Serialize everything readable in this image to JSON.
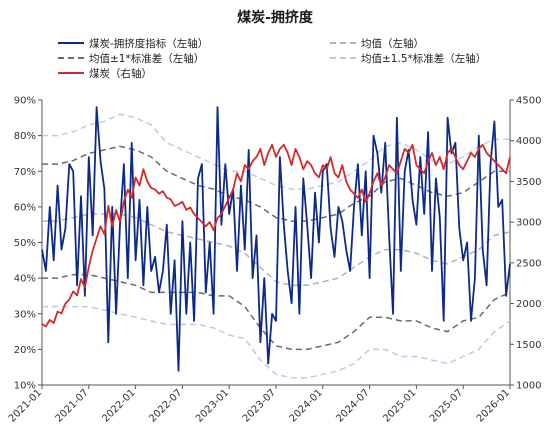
{
  "chart_data": {
    "type": "line",
    "title": "煤炭-拥挤度",
    "legend_position": "top",
    "grid": false,
    "x_labels": [
      "2021-01",
      "2021-07",
      "2022-01",
      "2022-07",
      "2023-01",
      "2023-07",
      "2024-01",
      "2024-07",
      "2025-01",
      "2025-07",
      "2026-01"
    ],
    "x_range": [
      0,
      60
    ],
    "y_left": {
      "range": [
        10,
        90
      ],
      "ticks": [
        "10%",
        "20%",
        "30%",
        "40%",
        "50%",
        "60%",
        "70%",
        "80%",
        "90%"
      ]
    },
    "y_right": {
      "range": [
        1000,
        4500
      ],
      "ticks": [
        "1000",
        "1500",
        "2000",
        "2500",
        "3000",
        "3500",
        "4000",
        "4500"
      ]
    },
    "legend": [
      "煤炭-拥挤度指标（左轴）",
      "均值（左轴）",
      "均值±1*标准差（左轴）",
      "均值±1.5*标准差（左轴）",
      "煤炭（右轴）"
    ],
    "series": [
      {
        "name": "煤炭-拥挤度指标（左轴）",
        "axis": "left",
        "color": "#0d2a8a",
        "dash": "",
        "x": [
          0,
          0.5,
          1,
          1.5,
          2,
          2.5,
          3,
          3.5,
          4,
          4.5,
          5,
          5.5,
          6,
          6.5,
          7,
          7.5,
          8,
          8.5,
          9,
          9.5,
          10,
          10.5,
          11,
          11.5,
          12,
          12.5,
          13,
          13.5,
          14,
          14.5,
          15,
          15.5,
          16,
          16.5,
          17,
          17.5,
          18,
          18.5,
          19,
          19.5,
          20,
          20.5,
          21,
          21.5,
          22,
          22.5,
          23,
          23.5,
          24,
          24.5,
          25,
          25.5,
          26,
          26.5,
          27,
          27.5,
          28,
          28.5,
          29,
          29.5,
          30,
          30.5,
          31,
          31.5,
          32,
          32.5,
          33,
          33.5,
          34,
          34.5,
          35,
          35.5,
          36,
          36.5,
          37,
          37.5,
          38,
          38.5,
          39,
          39.5,
          40,
          40.5,
          41,
          41.5,
          42,
          42.5,
          43,
          43.5,
          44,
          44.5,
          45,
          45.5,
          46,
          46.5,
          47,
          47.5,
          48,
          48.5,
          49,
          49.5,
          50,
          50.5,
          51,
          51.5,
          52,
          52.5,
          53,
          53.5,
          54,
          54.5,
          55,
          55.5,
          56,
          56.5,
          57,
          57.5,
          58,
          58.5,
          59,
          59.5,
          60
        ],
        "y": [
          48,
          42,
          60,
          45,
          66,
          48,
          54,
          72,
          70,
          38,
          63,
          35,
          74,
          52,
          88,
          73,
          65,
          22,
          60,
          30,
          55,
          72,
          40,
          78,
          45,
          62,
          38,
          60,
          42,
          46,
          36,
          42,
          55,
          30,
          45,
          14,
          56,
          30,
          50,
          28,
          68,
          72,
          36,
          50,
          30,
          88,
          55,
          72,
          58,
          65,
          42,
          66,
          48,
          76,
          40,
          52,
          22,
          40,
          16,
          30,
          28,
          74,
          55,
          42,
          33,
          60,
          30,
          68,
          55,
          40,
          64,
          50,
          70,
          72,
          54,
          46,
          60,
          56,
          48,
          42,
          60,
          72,
          52,
          70,
          40,
          80,
          75,
          64,
          78,
          52,
          30,
          85,
          42,
          70,
          76,
          62,
          55,
          74,
          58,
          81,
          42,
          68,
          57,
          28,
          85,
          75,
          78,
          54,
          45,
          50,
          28,
          40,
          80,
          48,
          38,
          72,
          84,
          60,
          62,
          35,
          44
        ]
      },
      {
        "name": "均值（左轴）",
        "axis": "left",
        "color": "#a9b3c2",
        "dash": "6,4",
        "x": [
          0,
          2,
          4,
          6,
          8,
          10,
          12,
          14,
          16,
          18,
          20,
          22,
          24,
          26,
          28,
          30,
          32,
          34,
          36,
          38,
          40,
          42,
          44,
          46,
          48,
          50,
          52,
          54,
          56,
          58,
          60
        ],
        "y": [
          56,
          56,
          57,
          58,
          58,
          58,
          57,
          55,
          53,
          52,
          51,
          50,
          49,
          47,
          43,
          39,
          38,
          38,
          39,
          40,
          43,
          46,
          48,
          48,
          47,
          45,
          44,
          46,
          48,
          52,
          53
        ]
      },
      {
        "name": "均值±1*标准差（左轴）",
        "axis": "left",
        "color": "#6a6a6a",
        "dash": "6,4",
        "x": [
          0,
          2,
          4,
          6,
          8,
          10,
          12,
          14,
          16,
          18,
          20,
          22,
          24,
          26,
          28,
          30,
          32,
          34,
          36,
          38,
          40,
          42,
          44,
          46,
          48,
          50,
          52,
          54,
          56,
          58,
          60
        ],
        "y": [
          72,
          72,
          73,
          75,
          76,
          77,
          76,
          74,
          70,
          68,
          66,
          65,
          63,
          62,
          60,
          57,
          56,
          56,
          57,
          58,
          61,
          63,
          67,
          68,
          66,
          64,
          63,
          64,
          67,
          70,
          70
        ]
      },
      {
        "name": "均值±1*标准差（左轴）",
        "axis": "left",
        "color": "#6a6a6a",
        "dash": "6,4",
        "x": [
          0,
          2,
          4,
          6,
          8,
          10,
          12,
          14,
          16,
          18,
          20,
          22,
          24,
          26,
          28,
          30,
          32,
          34,
          36,
          38,
          40,
          42,
          44,
          46,
          48,
          50,
          52,
          54,
          56,
          58,
          60
        ],
        "y": [
          40,
          40,
          41,
          41,
          40,
          39,
          38,
          36,
          36,
          36,
          36,
          35,
          35,
          32,
          26,
          21,
          20,
          20,
          21,
          22,
          25,
          29,
          29,
          28,
          28,
          26,
          25,
          28,
          29,
          34,
          36
        ]
      },
      {
        "name": "均值±1.5*标准差（左轴）",
        "axis": "left",
        "color": "#b8cde8",
        "dash": "6,4",
        "x": [
          0,
          2,
          4,
          6,
          8,
          10,
          12,
          14,
          16,
          18,
          20,
          22,
          24,
          26,
          28,
          30,
          32,
          34,
          36,
          38,
          40,
          42,
          44,
          46,
          48,
          50,
          52,
          54,
          56,
          58,
          60
        ],
        "y": [
          80,
          80,
          81,
          83,
          84,
          86,
          85,
          83,
          78,
          76,
          74,
          72,
          70,
          70,
          68,
          66,
          65,
          65,
          66,
          67,
          70,
          73,
          77,
          78,
          76,
          73,
          72,
          74,
          77,
          79,
          79
        ]
      },
      {
        "name": "均值±1.5*标准差（左轴）",
        "axis": "left",
        "color": "#b8cde8",
        "dash": "6,4",
        "x": [
          0,
          2,
          4,
          6,
          8,
          10,
          12,
          14,
          16,
          18,
          20,
          22,
          24,
          26,
          28,
          30,
          32,
          34,
          36,
          38,
          40,
          42,
          44,
          46,
          48,
          50,
          52,
          54,
          56,
          58,
          60
        ],
        "y": [
          32,
          32,
          32,
          32,
          31,
          30,
          29,
          28,
          27,
          27,
          27,
          26,
          24,
          23,
          17,
          13,
          12,
          12,
          13,
          14,
          16,
          20,
          20,
          18,
          18,
          17,
          16,
          18,
          20,
          25,
          28
        ]
      },
      {
        "name": "煤炭（右轴）",
        "axis": "right",
        "color": "#d42a2a",
        "dash": "",
        "x": [
          0,
          0.5,
          1,
          1.5,
          2,
          2.5,
          3,
          3.5,
          4,
          4.5,
          5,
          5.5,
          6,
          6.5,
          7,
          7.5,
          8,
          8.5,
          9,
          9.5,
          10,
          10.5,
          11,
          11.5,
          12,
          12.5,
          13,
          13.5,
          14,
          14.5,
          15,
          15.5,
          16,
          16.5,
          17,
          17.5,
          18,
          18.5,
          19,
          19.5,
          20,
          20.5,
          21,
          21.5,
          22,
          22.5,
          23,
          23.5,
          24,
          24.5,
          25,
          25.5,
          26,
          26.5,
          27,
          27.5,
          28,
          28.5,
          29,
          29.5,
          30,
          30.5,
          31,
          31.5,
          32,
          32.5,
          33,
          33.5,
          34,
          34.5,
          35,
          35.5,
          36,
          36.5,
          37,
          37.5,
          38,
          38.5,
          39,
          39.5,
          40,
          40.5,
          41,
          41.5,
          42,
          42.5,
          43,
          43.5,
          44,
          44.5,
          45,
          45.5,
          46,
          46.5,
          47,
          47.5,
          48,
          48.5,
          49,
          49.5,
          50,
          50.5,
          51,
          51.5,
          52,
          52.5,
          53,
          53.5,
          54,
          54.5,
          55,
          55.5,
          56,
          56.5,
          57,
          57.5,
          58,
          58.5,
          59,
          59.5,
          60
        ],
        "y": [
          1750,
          1720,
          1800,
          1760,
          1900,
          1880,
          2000,
          2050,
          2150,
          2100,
          2300,
          2200,
          2450,
          2650,
          2800,
          2950,
          2850,
          3200,
          2950,
          3150,
          3000,
          3250,
          3400,
          3300,
          3550,
          3450,
          3650,
          3500,
          3420,
          3400,
          3350,
          3380,
          3300,
          3280,
          3200,
          3220,
          3250,
          3150,
          3180,
          3100,
          3050,
          3000,
          2950,
          3000,
          2900,
          3050,
          3100,
          3200,
          3300,
          3400,
          3600,
          3500,
          3700,
          3650,
          3750,
          3800,
          3900,
          3700,
          3850,
          3950,
          3800,
          3900,
          3950,
          3850,
          3700,
          3900,
          3800,
          3650,
          3750,
          3700,
          3600,
          3550,
          3700,
          3650,
          3800,
          3600,
          3550,
          3700,
          3500,
          3400,
          3350,
          3300,
          3400,
          3250,
          3350,
          3500,
          3600,
          3450,
          3550,
          3700,
          3650,
          3600,
          3750,
          3900,
          3850,
          3950,
          3700,
          3650,
          3600,
          3750,
          3850,
          3700,
          3800,
          3650,
          3850,
          3900,
          3800,
          3700,
          3650,
          3750,
          3850,
          3800,
          3900,
          3950,
          3850,
          3800,
          3750,
          3700,
          3650,
          3600,
          3800
        ]
      }
    ]
  }
}
